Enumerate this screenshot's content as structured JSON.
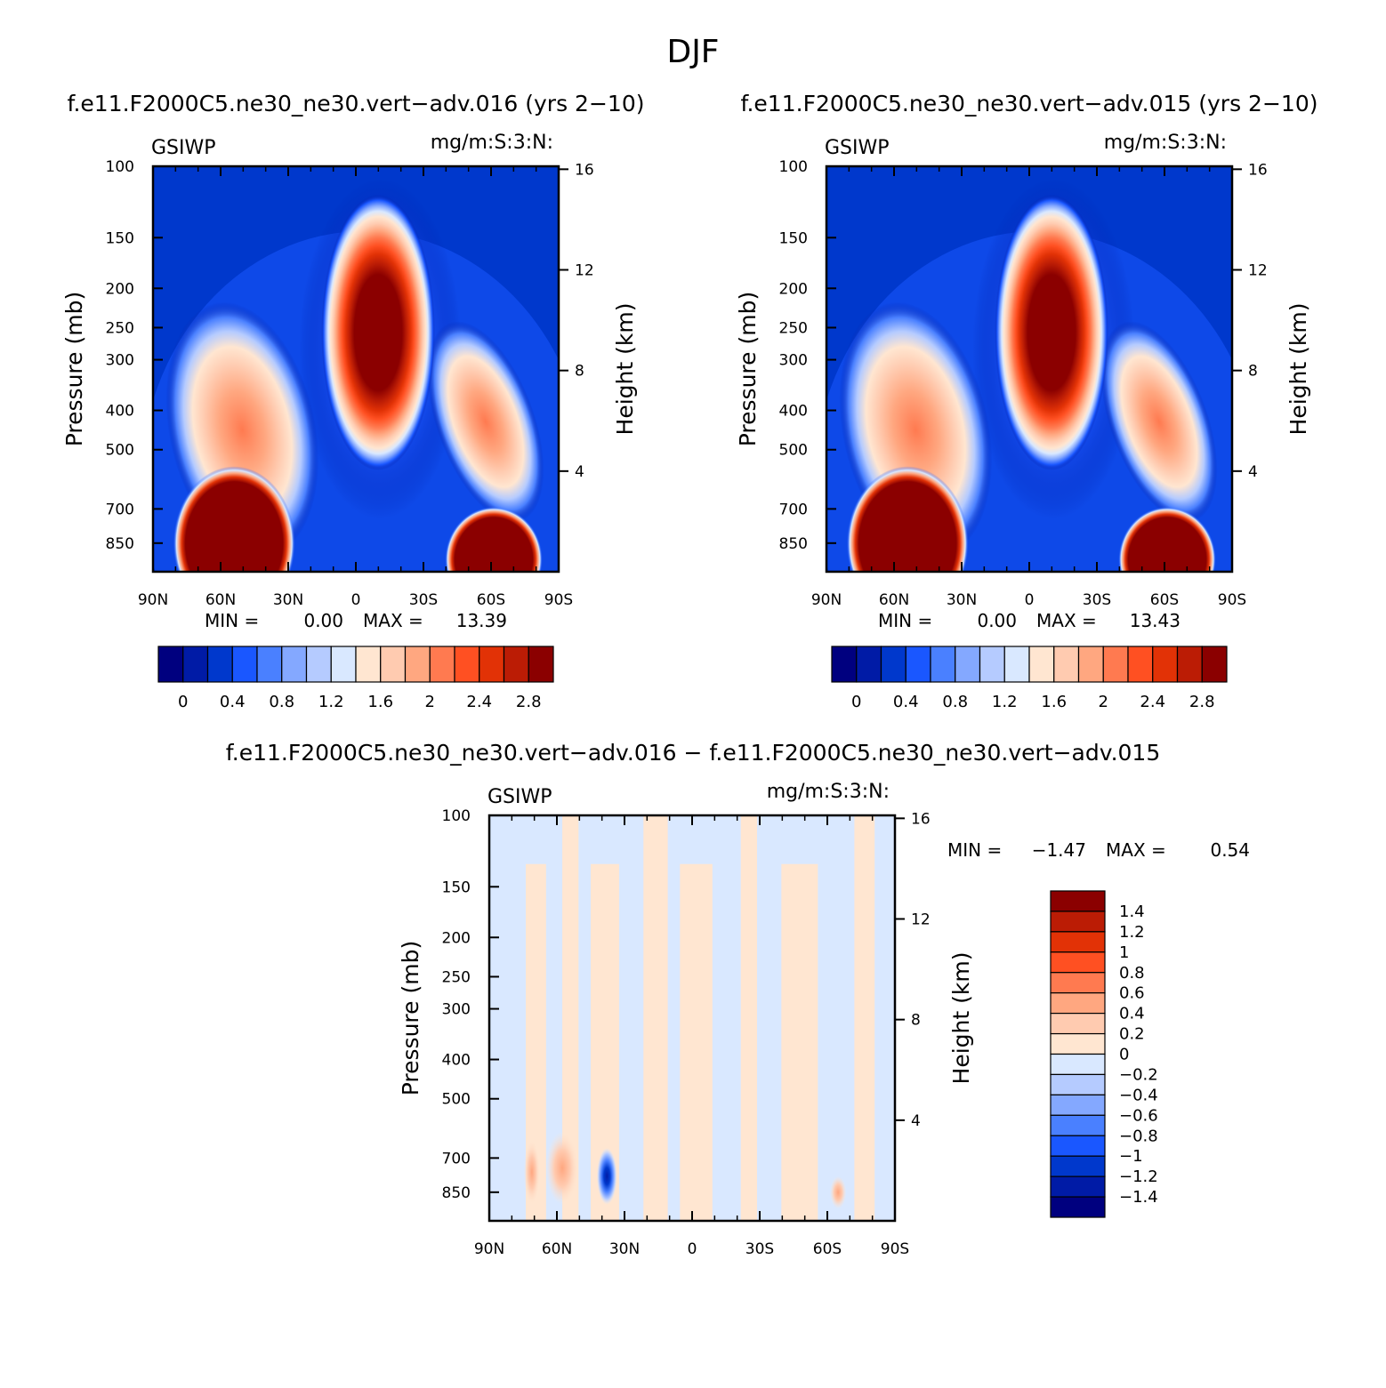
{
  "figure": {
    "season_title": "DJF",
    "panel_titles": [
      "f.e11.F2000C5.ne30_ne30.vert−adv.016 (yrs 2−10)",
      "f.e11.F2000C5.ne30_ne30.vert−adv.015 (yrs 2−10)",
      "f.e11.F2000C5.ne30_ne30.vert−adv.016 − f.e11.F2000C5.ne30_ne30.vert−adv.015"
    ]
  },
  "chart_data": [
    {
      "type": "heatmap",
      "variable": "GSIWP",
      "units": "mg/m:S:3:N:",
      "ylabel": "Pressure (mb)",
      "y2label": "Height (km)",
      "xticks": [
        "90N",
        "60N",
        "30N",
        "0",
        "30S",
        "60S",
        "90S"
      ],
      "yticks": [
        100,
        150,
        200,
        250,
        300,
        400,
        500,
        700,
        850
      ],
      "y2ticks": [
        16,
        12,
        8,
        4
      ],
      "min_label": "MIN =",
      "min_value": "0.00",
      "max_label": "MAX =",
      "max_value": "13.39",
      "min": 0.0,
      "max": 13.39,
      "colorbar": {
        "orientation": "horizontal",
        "colors": [
          "#00007f",
          "#001ba6",
          "#0038cc",
          "#1a57ff",
          "#4a80ff",
          "#84a8ff",
          "#b5cbff",
          "#d9e8ff",
          "#ffe6d1",
          "#ffcbb0",
          "#ffa780",
          "#ff7a50",
          "#ff5022",
          "#e23206",
          "#bb1c05",
          "#8b0000"
        ],
        "labels": [
          "0",
          "0.4",
          "0.8",
          "1.2",
          "1.6",
          "2",
          "2.4",
          "2.8"
        ]
      }
    },
    {
      "type": "heatmap",
      "variable": "GSIWP",
      "units": "mg/m:S:3:N:",
      "ylabel": "Pressure (mb)",
      "y2label": "Height (km)",
      "xticks": [
        "90N",
        "60N",
        "30N",
        "0",
        "30S",
        "60S",
        "90S"
      ],
      "yticks": [
        100,
        150,
        200,
        250,
        300,
        400,
        500,
        700,
        850
      ],
      "y2ticks": [
        16,
        12,
        8,
        4
      ],
      "min_label": "MIN =",
      "min_value": "0.00",
      "max_label": "MAX =",
      "max_value": "13.43",
      "min": 0.0,
      "max": 13.43,
      "colorbar": {
        "orientation": "horizontal",
        "colors": [
          "#00007f",
          "#001ba6",
          "#0038cc",
          "#1a57ff",
          "#4a80ff",
          "#84a8ff",
          "#b5cbff",
          "#d9e8ff",
          "#ffe6d1",
          "#ffcbb0",
          "#ffa780",
          "#ff7a50",
          "#ff5022",
          "#e23206",
          "#bb1c05",
          "#8b0000"
        ],
        "labels": [
          "0",
          "0.4",
          "0.8",
          "1.2",
          "1.6",
          "2",
          "2.4",
          "2.8"
        ]
      }
    },
    {
      "type": "heatmap",
      "variable": "GSIWP",
      "units": "mg/m:S:3:N:",
      "ylabel": "Pressure (mb)",
      "y2label": "Height (km)",
      "xticks": [
        "90N",
        "60N",
        "30N",
        "0",
        "30S",
        "60S",
        "90S"
      ],
      "yticks": [
        100,
        150,
        200,
        250,
        300,
        400,
        500,
        700,
        850
      ],
      "y2ticks": [
        16,
        12,
        8,
        4
      ],
      "min_label": "MIN =",
      "min_value": "−1.47",
      "max_label": "MAX =",
      "max_value": "0.54",
      "min": -1.47,
      "max": 0.54,
      "colorbar": {
        "orientation": "vertical",
        "colors": [
          "#00007f",
          "#001ba6",
          "#0038cc",
          "#1a57ff",
          "#4a80ff",
          "#84a8ff",
          "#b5cbff",
          "#d9e8ff",
          "#ffe6d1",
          "#ffcbb0",
          "#ffa780",
          "#ff7a50",
          "#ff5022",
          "#e23206",
          "#bb1c05",
          "#8b0000"
        ],
        "labels": [
          "−1.4",
          "−1.2",
          "−1",
          "−0.8",
          "−0.6",
          "−0.4",
          "−0.2",
          "0",
          "0.2",
          "0.4",
          "0.6",
          "0.8",
          "1",
          "1.2",
          "1.4"
        ]
      }
    }
  ]
}
